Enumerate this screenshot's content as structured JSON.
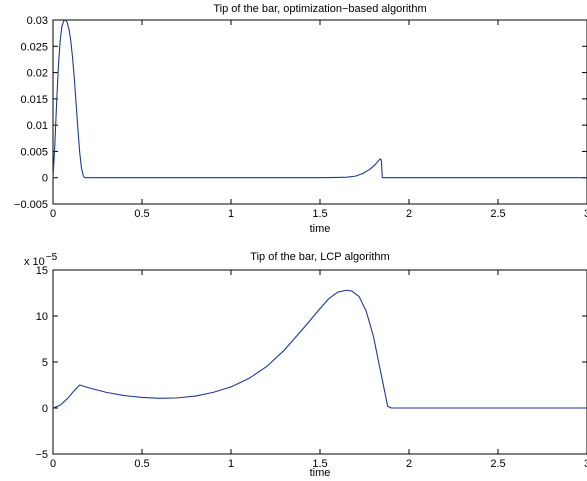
{
  "chart_data": [
    {
      "type": "line",
      "title": "Tip of the bar, optimization−based algorithm",
      "xlabel": "time",
      "ylabel": "",
      "xlim": [
        0,
        3
      ],
      "ylim": [
        -0.005,
        0.03
      ],
      "xticks": [
        0,
        0.5,
        1,
        1.5,
        2,
        2.5,
        3
      ],
      "xtick_labels": [
        "0",
        "0.5",
        "1",
        "1.5",
        "2",
        "2.5",
        "3"
      ],
      "yticks": [
        -0.005,
        0,
        0.005,
        0.01,
        0.015,
        0.02,
        0.025,
        0.03
      ],
      "ytick_labels": [
        "−0.005",
        "0",
        "0.005",
        "0.01",
        "0.015",
        "0.02",
        "0.025",
        "0.03"
      ],
      "grid": false,
      "color": "#1f3a93",
      "series": [
        {
          "x": [
            0,
            0.01,
            0.02,
            0.03,
            0.04,
            0.05,
            0.06,
            0.07,
            0.08,
            0.09,
            0.1,
            0.11,
            0.12,
            0.13,
            0.14,
            0.15,
            0.16,
            0.17,
            0.175,
            0.18,
            0.2,
            0.5,
            1.0,
            1.5,
            1.6,
            1.65,
            1.7,
            1.74,
            1.78,
            1.81,
            1.83,
            1.84,
            1.845,
            1.85,
            1.9,
            2.0,
            2.5,
            3.0
          ],
          "y": [
            0.0,
            0.006,
            0.014,
            0.021,
            0.026,
            0.0288,
            0.0298,
            0.03,
            0.0295,
            0.0282,
            0.026,
            0.0228,
            0.0188,
            0.014,
            0.0092,
            0.0048,
            0.0018,
            0.0004,
            0.0001,
            0.0,
            0.0,
            0.0,
            0.0,
            0.0,
            5e-05,
            0.0001,
            0.0003,
            0.0008,
            0.0016,
            0.0025,
            0.0033,
            0.0036,
            0.0032,
            0.0,
            0.0,
            0.0,
            0.0,
            0.0
          ]
        }
      ]
    },
    {
      "type": "line",
      "title": "Tip of the bar, LCP algorithm",
      "xlabel": "time",
      "ylabel": "",
      "y_scale_label": "x 10",
      "y_scale_exponent": "−5",
      "xlim": [
        0,
        3
      ],
      "ylim": [
        -5,
        15
      ],
      "xticks": [
        0,
        0.5,
        1,
        1.5,
        2,
        2.5,
        3
      ],
      "xtick_labels": [
        "0",
        "0.5",
        "1",
        "1.5",
        "2",
        "2.5",
        "3"
      ],
      "yticks": [
        -5,
        0,
        5,
        10,
        15
      ],
      "ytick_labels": [
        "−5",
        "0",
        "5",
        "10",
        "15"
      ],
      "grid": false,
      "color": "#1f3a93",
      "series": [
        {
          "x": [
            0,
            0.04,
            0.08,
            0.12,
            0.15,
            0.2,
            0.3,
            0.4,
            0.5,
            0.6,
            0.7,
            0.8,
            0.9,
            1.0,
            1.1,
            1.2,
            1.3,
            1.4,
            1.5,
            1.55,
            1.6,
            1.65,
            1.68,
            1.72,
            1.76,
            1.8,
            1.84,
            1.88,
            1.9,
            2.0,
            2.5,
            3.0
          ],
          "y": [
            0.0,
            0.3,
            1.0,
            1.9,
            2.5,
            2.2,
            1.7,
            1.35,
            1.15,
            1.05,
            1.1,
            1.3,
            1.7,
            2.3,
            3.2,
            4.5,
            6.3,
            8.5,
            10.8,
            11.9,
            12.6,
            12.8,
            12.7,
            12.1,
            10.5,
            7.8,
            4.0,
            0.2,
            0.0,
            0.0,
            0.0,
            0.0
          ]
        }
      ]
    }
  ]
}
